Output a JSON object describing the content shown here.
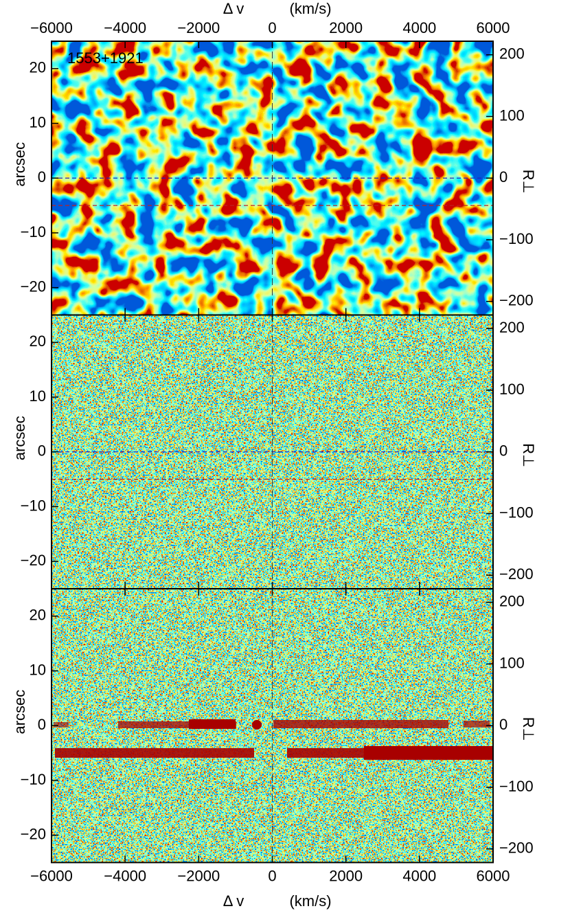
{
  "chart_data": [
    {
      "type": "heatmap",
      "texture": "smooth",
      "annotation": "1553+1921",
      "xlabel": "Δ v",
      "xunit": "(km/s)",
      "xaxis_labels": "top",
      "xlim": [
        -6000,
        6000
      ],
      "xticks": [
        {
          "value": -6000,
          "label": "−6000"
        },
        {
          "value": -4000,
          "label": "−4000"
        },
        {
          "value": -2000,
          "label": "−2000"
        },
        0,
        2000,
        4000,
        6000
      ],
      "ylabel": "arcsec",
      "ylim": [
        -25,
        25
      ],
      "yticks": [
        {
          "value": -20,
          "label": "−20"
        },
        {
          "value": -10,
          "label": "−10"
        },
        0,
        10,
        20
      ],
      "y2label": "R⊥",
      "y2lim": [
        -222,
        222
      ],
      "y2ticks": [
        {
          "value": -200,
          "label": "−200"
        },
        {
          "value": -100,
          "label": "−100"
        },
        0,
        100,
        200
      ],
      "hlines": [
        {
          "value": 0,
          "color": "#2020c0"
        },
        {
          "value": -5,
          "color": "#c02020"
        }
      ],
      "vline": 0
    },
    {
      "type": "heatmap",
      "texture": "fine",
      "xlim": [
        -6000,
        6000
      ],
      "xticks": [
        {
          "value": -6000,
          "label": "−6000"
        },
        {
          "value": -4000,
          "label": "−4000"
        },
        {
          "value": -2000,
          "label": "−2000"
        },
        0,
        2000,
        4000,
        6000
      ],
      "ylabel": "arcsec",
      "ylim": [
        -25,
        25
      ],
      "yticks": [
        {
          "value": -20,
          "label": "−20"
        },
        {
          "value": -10,
          "label": "−10"
        },
        0,
        10,
        20
      ],
      "y2label": "R⊥",
      "y2lim": [
        -222,
        222
      ],
      "y2ticks": [
        {
          "value": -200,
          "label": "−200"
        },
        {
          "value": -100,
          "label": "−100"
        },
        0,
        100,
        200
      ],
      "hlines": [
        {
          "value": 0,
          "color": "#2020c0"
        },
        {
          "value": -5,
          "color": "#c02020"
        }
      ],
      "vline": 0
    },
    {
      "type": "heatmap",
      "texture": "fine",
      "xlabel": "Δ v",
      "xunit": "(km/s)",
      "xaxis_labels": "bottom",
      "xlim": [
        -6000,
        6000
      ],
      "xticks": [
        {
          "value": -6000,
          "label": "−6000"
        },
        {
          "value": -4000,
          "label": "−4000"
        },
        {
          "value": -2000,
          "label": "−2000"
        },
        0,
        2000,
        4000,
        6000
      ],
      "ylabel": "arcsec",
      "ylim": [
        -25,
        25
      ],
      "yticks": [
        {
          "value": -20,
          "label": "−20"
        },
        {
          "value": -10,
          "label": "−10"
        },
        0,
        10,
        20
      ],
      "y2label": "R⊥",
      "y2lim": [
        -222,
        222
      ],
      "y2ticks": [
        {
          "value": -200,
          "label": "−200"
        },
        {
          "value": -100,
          "label": "−100"
        },
        0,
        100,
        200
      ],
      "vline": 0
    }
  ]
}
